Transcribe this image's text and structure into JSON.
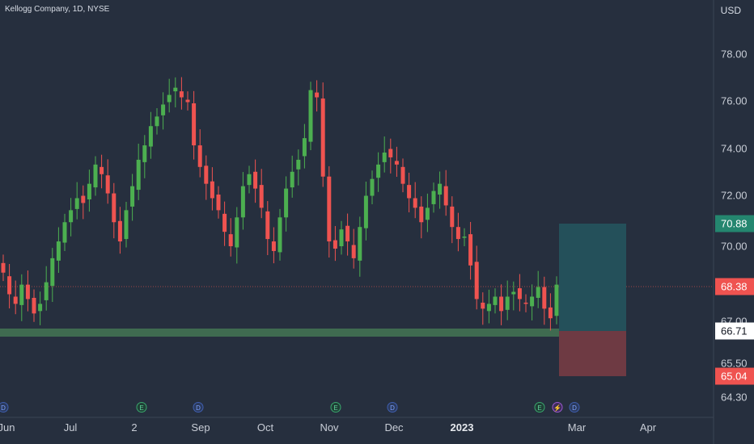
{
  "header": {
    "symbol_title": "Kellogg Company, 1D, NYSE",
    "currency": "USD"
  },
  "colors": {
    "up": "#26a69a",
    "up_candle": "#4caf50",
    "down": "#ef5350",
    "background": "#262f3e",
    "support_zone": "#3f6b50",
    "target_zone": "#24505a",
    "stop_zone": "#6e3a43"
  },
  "y_axis": {
    "ticks": [
      "78.00",
      "76.00",
      "74.00",
      "72.00",
      "70.00",
      "67.00",
      "65.50",
      "64.30"
    ]
  },
  "x_axis": {
    "ticks": [
      "Jun",
      "Jul",
      "2",
      "Sep",
      "Oct",
      "Nov",
      "Dec",
      "2023",
      "Mar",
      "Apr"
    ]
  },
  "price_tags": [
    {
      "label": "70.88",
      "kind": "target"
    },
    {
      "label": "68.38",
      "kind": "last"
    },
    {
      "label": "66.71",
      "kind": "entry"
    },
    {
      "label": "65.04",
      "kind": "stop"
    }
  ],
  "position": {
    "target": 70.88,
    "entry": 66.71,
    "stop": 65.04
  },
  "last_price": 68.38,
  "support_zone": {
    "low": 66.55,
    "high": 66.85
  },
  "events": [
    {
      "type": "D",
      "icon": "dividend-icon"
    },
    {
      "type": "E",
      "icon": "earnings-icon"
    },
    {
      "type": "D",
      "icon": "dividend-icon"
    },
    {
      "type": "E",
      "icon": "earnings-icon"
    },
    {
      "type": "D",
      "icon": "dividend-icon"
    },
    {
      "type": "E",
      "icon": "earnings-icon"
    },
    {
      "type": "⚡",
      "icon": "split-icon"
    },
    {
      "type": "D",
      "icon": "dividend-icon"
    }
  ],
  "chart_data": {
    "type": "candlestick",
    "y_range": [
      64.0,
      79.5
    ],
    "closes_approx": [
      68.9,
      68.0,
      67.6,
      68.4,
      67.8,
      67.2,
      67.6,
      68.5,
      69.5,
      70.2,
      71.0,
      71.5,
      72.0,
      71.8,
      72.6,
      73.4,
      73.0,
      72.2,
      71.0,
      70.2,
      71.5,
      72.5,
      73.6,
      74.2,
      75.0,
      75.4,
      75.9,
      76.3,
      76.6,
      76.2,
      76.0,
      74.2,
      73.3,
      72.6,
      72.0,
      71.5,
      70.6,
      70.0,
      71.2,
      72.5,
      73.0,
      72.4,
      71.6,
      70.3,
      69.8,
      71.2,
      72.4,
      73.1,
      73.6,
      74.5,
      76.5,
      76.2,
      72.9,
      70.2,
      69.9,
      70.7,
      70.2,
      69.5,
      70.8,
      72.1,
      72.8,
      73.4,
      73.9,
      73.7,
      73.4,
      72.6,
      72.0,
      71.6,
      71.0,
      71.6,
      72.3,
      72.6,
      71.7,
      70.8,
      70.3,
      70.4,
      69.2,
      67.8,
      67.4,
      67.6,
      67.9,
      67.3,
      67.9,
      68.1,
      67.8,
      67.6,
      67.9,
      68.3,
      67.4,
      67.0,
      68.4
    ]
  }
}
